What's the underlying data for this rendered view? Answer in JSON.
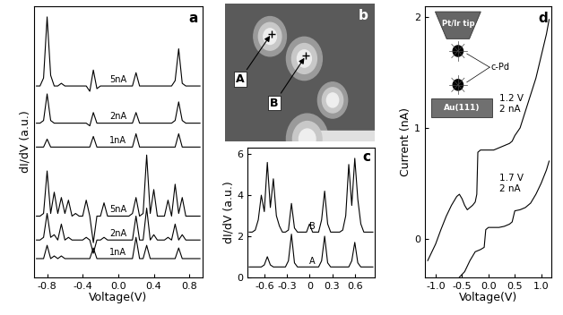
{
  "chart_data": [
    {
      "type": "line",
      "title": "a",
      "xlabel": "Voltage(V)",
      "ylabel": "dI/dV (a.u.)",
      "x": [
        -0.92,
        -0.88,
        -0.84,
        -0.8,
        -0.76,
        -0.72,
        -0.68,
        -0.64,
        -0.6,
        -0.56,
        -0.52,
        -0.48,
        -0.44,
        -0.4,
        -0.36,
        -0.32,
        -0.28,
        -0.24,
        -0.2,
        -0.16,
        -0.12,
        -0.08,
        -0.04,
        0.0,
        0.04,
        0.08,
        0.12,
        0.16,
        0.2,
        0.24,
        0.28,
        0.32,
        0.36,
        0.4,
        0.44,
        0.48,
        0.52,
        0.56,
        0.6,
        0.64,
        0.68,
        0.72,
        0.76,
        0.8,
        0.84,
        0.88,
        0.92
      ],
      "series": [
        {
          "name": "5nA",
          "color": "#000000",
          "values": [
            7.2,
            7.2,
            7.5,
            9.8,
            7.6,
            7.2,
            7.2,
            7.3,
            7.2,
            7.2,
            7.2,
            7.2,
            7.2,
            7.2,
            7.2,
            7.0,
            7.8,
            7.1,
            7.2,
            7.2,
            7.2,
            7.2,
            7.2,
            7.2,
            7.2,
            7.2,
            7.2,
            7.2,
            7.7,
            7.2,
            7.2,
            7.2,
            7.2,
            7.2,
            7.2,
            7.2,
            7.2,
            7.2,
            7.2,
            7.4,
            8.6,
            7.3,
            7.2,
            7.2,
            7.2,
            7.2,
            7.2
          ]
        },
        {
          "name": "2nA",
          "color": "#000000",
          "values": [
            5.8,
            5.8,
            5.9,
            6.9,
            5.9,
            5.8,
            5.8,
            5.8,
            5.8,
            5.8,
            5.8,
            5.8,
            5.8,
            5.8,
            5.8,
            5.7,
            6.2,
            5.8,
            5.8,
            5.8,
            5.8,
            5.8,
            5.8,
            5.8,
            5.8,
            5.8,
            5.8,
            5.8,
            6.2,
            5.8,
            5.8,
            5.8,
            5.8,
            5.8,
            5.8,
            5.8,
            5.8,
            5.8,
            5.8,
            5.9,
            6.6,
            5.9,
            5.8,
            5.8,
            5.8,
            5.8,
            5.8
          ]
        },
        {
          "name": "1nA",
          "color": "#000000",
          "values": [
            4.9,
            4.9,
            4.9,
            5.2,
            4.9,
            4.9,
            4.9,
            4.9,
            4.9,
            4.9,
            4.9,
            4.9,
            4.9,
            4.9,
            4.9,
            4.9,
            5.3,
            4.9,
            4.9,
            4.9,
            4.9,
            4.9,
            4.9,
            4.9,
            4.9,
            4.9,
            4.9,
            4.9,
            5.4,
            4.9,
            4.9,
            4.9,
            4.9,
            4.9,
            4.9,
            4.9,
            4.9,
            4.9,
            4.9,
            4.9,
            5.4,
            4.9,
            4.9,
            4.9,
            4.9,
            4.9,
            4.9
          ]
        },
        {
          "name": "5nA",
          "color": "#000000",
          "values": [
            2.3,
            2.3,
            2.4,
            4.0,
            2.4,
            3.2,
            2.4,
            3.0,
            2.4,
            2.9,
            2.3,
            2.4,
            2.3,
            2.3,
            2.9,
            2.3,
            1.3,
            2.3,
            2.3,
            2.8,
            2.3,
            2.3,
            2.3,
            2.3,
            2.3,
            2.3,
            2.3,
            2.4,
            3.0,
            2.3,
            2.4,
            4.6,
            2.4,
            3.3,
            2.3,
            2.3,
            2.3,
            2.9,
            2.3,
            3.5,
            2.4,
            3.0,
            2.3,
            2.3,
            2.3,
            2.3,
            2.3
          ]
        },
        {
          "name": "2nA",
          "color": "#000000",
          "values": [
            1.4,
            1.4,
            1.5,
            2.4,
            1.5,
            1.6,
            1.4,
            2.0,
            1.4,
            1.5,
            1.4,
            1.4,
            1.4,
            1.4,
            1.5,
            1.4,
            0.9,
            1.4,
            1.4,
            1.5,
            1.4,
            1.4,
            1.4,
            1.4,
            1.4,
            1.4,
            1.4,
            1.4,
            2.3,
            1.4,
            1.4,
            2.6,
            1.4,
            1.6,
            1.4,
            1.4,
            1.4,
            1.5,
            1.4,
            2.0,
            1.4,
            1.6,
            1.4,
            1.4,
            1.4,
            1.4,
            1.4
          ]
        },
        {
          "name": "1nA",
          "color": "#000000",
          "values": [
            0.7,
            0.7,
            0.7,
            1.2,
            0.7,
            0.8,
            0.7,
            0.8,
            0.7,
            0.7,
            0.7,
            0.7,
            0.7,
            0.7,
            0.7,
            0.7,
            1.1,
            0.7,
            0.7,
            0.7,
            0.7,
            0.7,
            0.7,
            0.7,
            0.7,
            0.7,
            0.7,
            0.7,
            1.5,
            0.7,
            0.7,
            1.2,
            0.7,
            0.7,
            0.7,
            0.7,
            0.7,
            0.7,
            0.7,
            0.7,
            1.1,
            0.7,
            0.7,
            0.7,
            0.7,
            0.7,
            0.7
          ]
        }
      ],
      "xlim": [
        -0.95,
        0.95
      ],
      "ylim": [
        0,
        10.2
      ],
      "xticks": [
        {
          "value": -0.8,
          "label": "-0.8"
        },
        {
          "value": -0.4,
          "label": "-0.4"
        },
        {
          "value": 0,
          "label": "0.0"
        },
        {
          "value": 0.4,
          "label": "0.4"
        },
        {
          "value": 0.8,
          "label": "0.8"
        }
      ],
      "tick_labels": "x"
    },
    {
      "type": "image",
      "title": "b",
      "labels": [
        "A",
        "B"
      ]
    },
    {
      "type": "line",
      "title": "c",
      "ylabel": "dI/dV (a.u.)",
      "x": [
        -0.8,
        -0.76,
        -0.72,
        -0.68,
        -0.64,
        -0.6,
        -0.56,
        -0.52,
        -0.48,
        -0.44,
        -0.4,
        -0.36,
        -0.32,
        -0.28,
        -0.24,
        -0.2,
        -0.16,
        -0.12,
        -0.08,
        -0.04,
        0.0,
        0.04,
        0.08,
        0.12,
        0.16,
        0.2,
        0.24,
        0.28,
        0.32,
        0.36,
        0.4,
        0.44,
        0.48,
        0.52,
        0.56,
        0.6,
        0.64,
        0.68,
        0.72,
        0.76,
        0.8,
        0.84
      ],
      "series": [
        {
          "name": "B",
          "color": "#000000",
          "values": [
            2.2,
            2.2,
            2.3,
            2.8,
            4.0,
            3.2,
            5.6,
            3.4,
            4.8,
            3.0,
            2.5,
            2.2,
            2.2,
            2.3,
            3.6,
            2.4,
            2.2,
            2.2,
            2.2,
            2.2,
            2.6,
            2.2,
            2.2,
            2.2,
            2.8,
            4.2,
            2.6,
            2.2,
            2.2,
            2.2,
            2.2,
            2.3,
            3.0,
            5.5,
            3.5,
            5.8,
            3.8,
            2.6,
            2.2,
            2.2,
            2.2,
            2.2
          ]
        },
        {
          "name": "A",
          "color": "#000000",
          "values": [
            0.5,
            0.5,
            0.5,
            0.5,
            0.5,
            0.6,
            1.0,
            0.6,
            0.5,
            0.5,
            0.5,
            0.5,
            0.5,
            0.8,
            2.1,
            0.7,
            0.5,
            0.5,
            0.5,
            0.5,
            0.5,
            0.5,
            0.5,
            0.5,
            0.8,
            2.0,
            0.7,
            0.5,
            0.5,
            0.5,
            0.5,
            0.5,
            0.5,
            0.5,
            0.8,
            1.7,
            0.7,
            0.5,
            0.5,
            0.5,
            0.5,
            0.5
          ]
        }
      ],
      "xlim": [
        -0.82,
        0.86
      ],
      "ylim": [
        0,
        6.3
      ],
      "xticks": [
        {
          "value": -0.6,
          "label": "-0.6"
        },
        {
          "value": -0.3,
          "label": "-0.3"
        },
        0,
        {
          "value": 0.3,
          "label": "0.3"
        },
        {
          "value": 0.6,
          "label": "0.6"
        }
      ],
      "yticks": [
        0,
        2,
        4,
        6
      ]
    },
    {
      "type": "line",
      "title": "d",
      "xlabel": "Voltage(V)",
      "ylabel": "Current (nA)",
      "series": [
        {
          "name": "1.2 V\n2 nA",
          "color": "#000000",
          "x": [
            -1.15,
            -1.0,
            -0.9,
            -0.8,
            -0.7,
            -0.6,
            -0.55,
            -0.5,
            -0.45,
            -0.4,
            -0.35,
            -0.3,
            -0.25,
            -0.22,
            -0.2,
            -0.15,
            -0.1,
            0.0,
            0.1,
            0.2,
            0.3,
            0.4,
            0.45,
            0.5,
            0.6,
            0.7,
            0.8,
            0.9,
            1.0,
            1.1,
            1.15
          ],
          "values": [
            -0.2,
            -0.05,
            0.08,
            0.2,
            0.3,
            0.38,
            0.4,
            0.36,
            0.3,
            0.26,
            0.28,
            0.3,
            0.33,
            0.4,
            0.78,
            0.8,
            0.8,
            0.8,
            0.8,
            0.82,
            0.84,
            0.86,
            0.88,
            0.93,
            1.0,
            1.15,
            1.3,
            1.45,
            1.65,
            1.85,
            1.98
          ]
        },
        {
          "name": "1.7 V\n2 nA",
          "color": "#000000",
          "x": [
            -0.55,
            -0.45,
            -0.35,
            -0.25,
            -0.15,
            -0.08,
            -0.05,
            0.0,
            0.1,
            0.2,
            0.3,
            0.4,
            0.45,
            0.5,
            0.6,
            0.7,
            0.8,
            0.9,
            1.0,
            1.1,
            1.15
          ],
          "values": [
            -0.35,
            -0.3,
            -0.2,
            -0.12,
            -0.1,
            -0.08,
            0.08,
            0.1,
            0.1,
            0.1,
            0.11,
            0.13,
            0.15,
            0.25,
            0.26,
            0.28,
            0.32,
            0.4,
            0.5,
            0.62,
            0.7
          ]
        }
      ],
      "xlim": [
        -1.2,
        1.2
      ],
      "ylim": [
        -0.35,
        2.1
      ],
      "xticks": [
        {
          "value": -1,
          "label": "-1.0"
        },
        {
          "value": -0.5,
          "label": "-0.5"
        },
        {
          "value": 0,
          "label": "0.0"
        },
        {
          "value": 0.5,
          "label": "0.5"
        },
        {
          "value": 1,
          "label": "1.0"
        }
      ],
      "yticks": [
        0,
        1,
        2
      ],
      "inset": {
        "tip": "Pt/Ir tip",
        "molecule": "c-Pd",
        "substrate": "Au(111)"
      }
    }
  ]
}
